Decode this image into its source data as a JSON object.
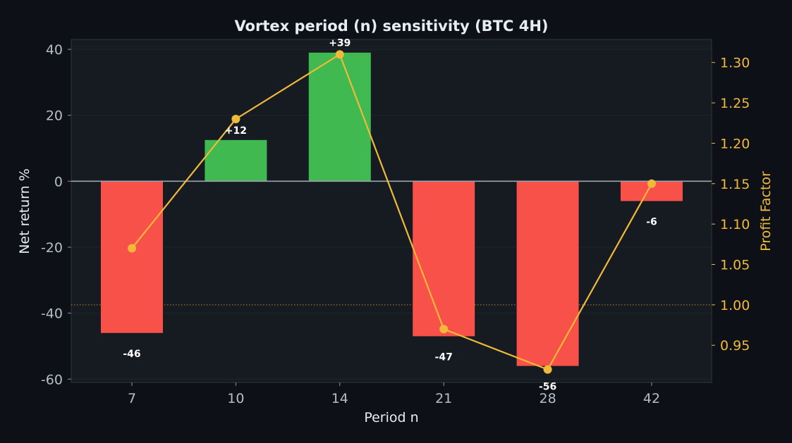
{
  "colors": {
    "background": "#0d1117",
    "plot_background": "#161b22",
    "positive_bar": "#3fb950",
    "negative_bar": "#f85149",
    "profit_factor_line": "#f0b93a",
    "left_tick_text": "#b7bdc6",
    "title_text": "#e6edf3",
    "label_text": "#e6edf3",
    "grid": "#1f252d",
    "zero_line": "#9aa4ae",
    "breakeven_line": "#c38a2c"
  },
  "chart_data": {
    "type": "bar",
    "title": "Vortex period (n) sensitivity (BTC 4H)",
    "xlabel": "Period n",
    "ylabel": "Net return %",
    "y2label": "Profit Factor",
    "categories": [
      "7",
      "10",
      "14",
      "21",
      "28",
      "42"
    ],
    "series": [
      {
        "type": "bar",
        "axis": "left",
        "values": [
          -46,
          12.5,
          39,
          -47,
          -56,
          -6
        ],
        "labels": [
          "-46",
          "+12",
          "+39",
          "-47",
          "-56",
          "-6"
        ]
      },
      {
        "type": "line",
        "axis": "right",
        "values": [
          1.07,
          1.23,
          1.31,
          0.97,
          0.92,
          1.15
        ]
      }
    ],
    "ylim": [
      -61,
      43
    ],
    "y2lim": [
      0.904,
      1.3285
    ],
    "yticks": [
      40,
      20,
      0,
      -20,
      -40,
      -60
    ],
    "ytick_labels": [
      "40",
      "20",
      "0",
      "-20",
      "-40",
      "-60"
    ],
    "y2ticks": [
      1.3,
      1.25,
      1.2,
      1.15,
      1.1,
      1.05,
      1.0,
      0.95
    ],
    "y2tick_labels": [
      "1.30",
      "1.25",
      "1.20",
      "1.15",
      "1.10",
      "1.05",
      "1.00",
      "0.95"
    ],
    "reference_lines": [
      {
        "axis": "left",
        "value": 0,
        "style": "solid"
      },
      {
        "axis": "right",
        "value": 1.0,
        "style": "dotted"
      }
    ],
    "grid": true
  }
}
